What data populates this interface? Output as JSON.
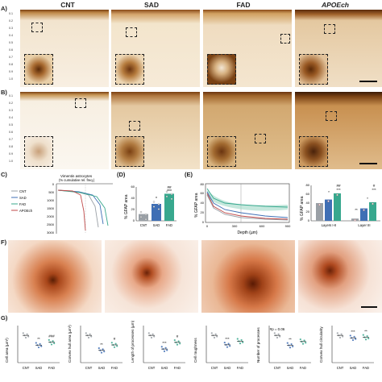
{
  "columns": [
    "CNT",
    "SAD",
    "FAD",
    "APOEch"
  ],
  "panel_labels": {
    "a": "A)",
    "b": "B)",
    "c": "C)",
    "d": "(D)",
    "e": "(E)",
    "f": "F)",
    "g": "G)"
  },
  "depth_ticks": [
    "0.1",
    "0.2",
    "0.3",
    "0.4",
    "0.5",
    "0.6",
    "0.7",
    "0.8",
    "0.9",
    "1.0"
  ],
  "colors": {
    "stain_dark": "#8a4e1a",
    "stain_light": "#f3e6cf",
    "cnt": "#9aa0a6",
    "sad": "#3f6fb5",
    "fad": "#38a88e",
    "apoe": "#c04a4a"
  },
  "chart_data": [
    {
      "type": "line",
      "title": "Vimentin astrocytes",
      "subtitle": "(% cumulative rel. freq.)",
      "y_ticks": [
        "0",
        "500",
        "1000",
        "1500",
        "2000",
        "2500",
        "3000"
      ],
      "series": [
        {
          "name": "CNT",
          "color": "#9aa0a6"
        },
        {
          "name": "SAD",
          "color": "#3f6fb5"
        },
        {
          "name": "FAD",
          "color": "#38a88e"
        },
        {
          "name": "APOEch",
          "color": "#c04a4a"
        }
      ]
    },
    {
      "type": "bar",
      "ylabel": "% GFAP area",
      "y_ticks": [
        "0",
        "20",
        "40",
        "60"
      ],
      "ylim": [
        0,
        60
      ],
      "categories": [
        "CNT",
        "SAD",
        "FAD"
      ],
      "values": [
        12,
        30,
        48
      ],
      "significance": [
        "",
        "*",
        "##\n***"
      ]
    },
    {
      "type": "line",
      "ylabel": "% GFAP area",
      "xlabel": "Depth (µm)",
      "x_ticks": [
        "0",
        "300",
        "600",
        "900"
      ],
      "y_ticks": [
        "0",
        "20",
        "40",
        "60",
        "80"
      ]
    },
    {
      "type": "bar",
      "ylabel": "% GFAP area",
      "y_ticks": [
        "0",
        "20",
        "40",
        "60",
        "80"
      ],
      "ylim": [
        0,
        80
      ],
      "groups": [
        "Layers I-II",
        "Layer III"
      ],
      "values": [
        [
          40,
          48,
          62
        ],
        [
          5,
          28,
          42
        ]
      ],
      "significance": [
        [
          "",
          "*",
          "##\n***"
        ],
        [
          "",
          "**",
          "#\n***"
        ]
      ]
    }
  ],
  "morphometry": {
    "categories": [
      "CNT",
      "SAD",
      "FAD"
    ],
    "metrics": [
      {
        "ylabel": "Cell area (µm²)",
        "values": [
          280,
          180,
          210
        ],
        "sig": [
          "",
          "**",
          "###"
        ]
      },
      {
        "ylabel": "Convex hull area (µm²)",
        "values": [
          2000,
          900,
          1300
        ],
        "sig": [
          "",
          "**",
          "#"
        ]
      },
      {
        "ylabel": "Length of processes (µm)",
        "values": [
          700,
          350,
          520
        ],
        "sig": [
          "",
          "***",
          "#"
        ]
      },
      {
        "ylabel": "Cell roughness",
        "values": [
          5.2,
          3.4,
          4.1
        ],
        "sig": [
          "",
          "***",
          ""
        ]
      },
      {
        "ylabel": "Number of processes",
        "values": [
          22,
          14,
          17
        ],
        "sig": [
          "#p = 0.06",
          "**",
          ""
        ]
      },
      {
        "ylabel": "Convex hull circularity",
        "values": [
          0.88,
          0.8,
          0.82
        ],
        "sig": [
          "",
          "***",
          "**"
        ]
      }
    ]
  }
}
